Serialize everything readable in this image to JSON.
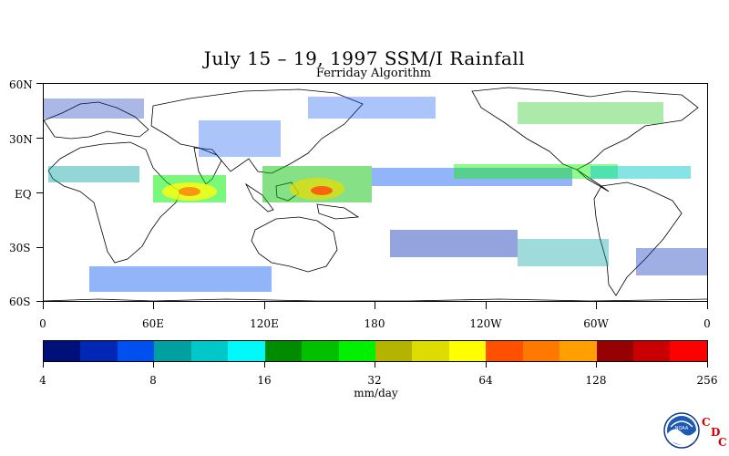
{
  "title": "July 15 – 19, 1997 SSM/I Rainfall",
  "subtitle": "Ferriday Algorithm",
  "latitude_labels": [
    "60N",
    "30N",
    "EQ",
    "30S",
    "60S"
  ],
  "longitude_labels": [
    "0",
    "60E",
    "120E",
    "180",
    "120W",
    "60W",
    "0"
  ],
  "colorbar": {
    "colors": [
      "#00107a",
      "#0028b4",
      "#0050f0",
      "#00a0a0",
      "#00c8c8",
      "#00f8f8",
      "#008c00",
      "#00c000",
      "#00f000",
      "#b4b400",
      "#dcdc00",
      "#ffff00",
      "#ff5000",
      "#ff7800",
      "#ffa000",
      "#960000",
      "#c80000",
      "#ff0000"
    ],
    "tick_labels": [
      "4",
      "8",
      "16",
      "32",
      "64",
      "128",
      "256"
    ],
    "units": "mm/day"
  },
  "logo": {
    "noaa_text": "NOAA",
    "cdc_letters": [
      "C",
      "D",
      "C"
    ]
  }
}
